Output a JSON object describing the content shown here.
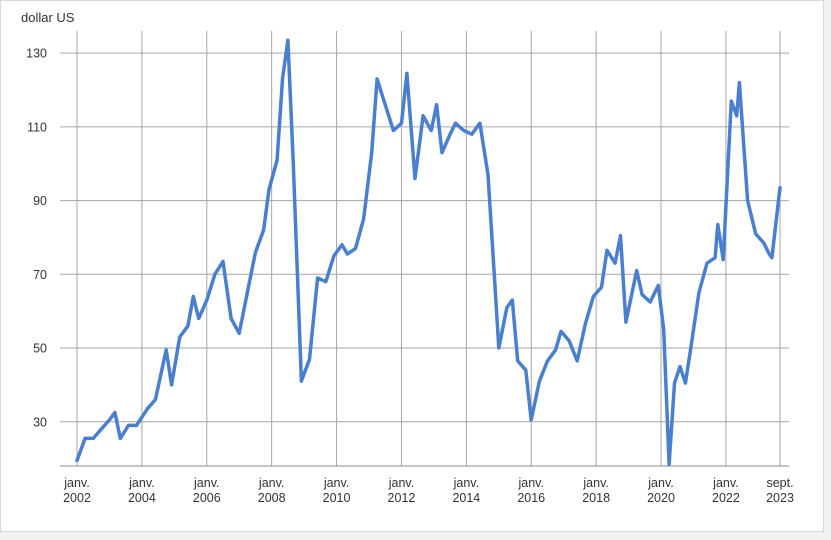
{
  "chart_data": {
    "type": "line",
    "ylabel": "dollar US",
    "xlabel": "",
    "title": "",
    "ylim": [
      18,
      136
    ],
    "xlim": [
      "2002-01",
      "2023-09"
    ],
    "grid": true,
    "legend": "none",
    "y_ticks": [
      30,
      50,
      70,
      90,
      110,
      130
    ],
    "x_ticks": [
      {
        "date": "2002-01",
        "line1": "janv.",
        "line2": "2002"
      },
      {
        "date": "2004-01",
        "line1": "janv.",
        "line2": "2004"
      },
      {
        "date": "2006-01",
        "line1": "janv.",
        "line2": "2006"
      },
      {
        "date": "2008-01",
        "line1": "janv.",
        "line2": "2008"
      },
      {
        "date": "2010-01",
        "line1": "janv.",
        "line2": "2010"
      },
      {
        "date": "2012-01",
        "line1": "janv.",
        "line2": "2012"
      },
      {
        "date": "2014-01",
        "line1": "janv.",
        "line2": "2014"
      },
      {
        "date": "2016-01",
        "line1": "janv.",
        "line2": "2016"
      },
      {
        "date": "2018-01",
        "line1": "janv.",
        "line2": "2018"
      },
      {
        "date": "2020-01",
        "line1": "janv.",
        "line2": "2020"
      },
      {
        "date": "2022-01",
        "line1": "janv.",
        "line2": "2022"
      },
      {
        "date": "2023-09",
        "line1": "sept.",
        "line2": "2023"
      }
    ],
    "series": [
      {
        "color": "#4a7fcf",
        "points": [
          [
            "2002-01",
            19.5
          ],
          [
            "2002-04",
            25.5
          ],
          [
            "2002-07",
            25.5
          ],
          [
            "2002-10",
            28.0
          ],
          [
            "2003-01",
            30.5
          ],
          [
            "2003-03",
            32.5
          ],
          [
            "2003-05",
            25.5
          ],
          [
            "2003-08",
            29.0
          ],
          [
            "2003-11",
            29.0
          ],
          [
            "2004-03",
            33.5
          ],
          [
            "2004-06",
            36.0
          ],
          [
            "2004-10",
            49.5
          ],
          [
            "2004-12",
            40.0
          ],
          [
            "2005-03",
            53.0
          ],
          [
            "2005-06",
            56.0
          ],
          [
            "2005-08",
            64.0
          ],
          [
            "2005-10",
            58.0
          ],
          [
            "2006-01",
            63.0
          ],
          [
            "2006-04",
            70.0
          ],
          [
            "2006-07",
            73.5
          ],
          [
            "2006-10",
            58.0
          ],
          [
            "2007-01",
            54.0
          ],
          [
            "2007-04",
            65.0
          ],
          [
            "2007-07",
            76.0
          ],
          [
            "2007-10",
            82.0
          ],
          [
            "2007-12",
            93.0
          ],
          [
            "2008-03",
            101.0
          ],
          [
            "2008-05",
            123.0
          ],
          [
            "2008-07",
            133.5
          ],
          [
            "2008-09",
            100.0
          ],
          [
            "2008-12",
            41.0
          ],
          [
            "2009-03",
            47.0
          ],
          [
            "2009-06",
            69.0
          ],
          [
            "2009-09",
            68.0
          ],
          [
            "2009-12",
            75.0
          ],
          [
            "2010-03",
            78.0
          ],
          [
            "2010-05",
            75.5
          ],
          [
            "2010-08",
            77.0
          ],
          [
            "2010-11",
            85.0
          ],
          [
            "2011-02",
            103.0
          ],
          [
            "2011-04",
            123.0
          ],
          [
            "2011-07",
            116.0
          ],
          [
            "2011-10",
            109.0
          ],
          [
            "2012-01",
            111.0
          ],
          [
            "2012-03",
            124.5
          ],
          [
            "2012-06",
            96.0
          ],
          [
            "2012-09",
            113.0
          ],
          [
            "2012-12",
            109.0
          ],
          [
            "2013-02",
            116.0
          ],
          [
            "2013-04",
            103.0
          ],
          [
            "2013-07",
            108.0
          ],
          [
            "2013-09",
            111.0
          ],
          [
            "2013-12",
            109.0
          ],
          [
            "2014-03",
            108.0
          ],
          [
            "2014-06",
            111.0
          ],
          [
            "2014-09",
            97.0
          ],
          [
            "2014-12",
            62.0
          ],
          [
            "2015-01",
            50.0
          ],
          [
            "2015-04",
            61.0
          ],
          [
            "2015-06",
            63.0
          ],
          [
            "2015-08",
            46.5
          ],
          [
            "2015-11",
            44.0
          ],
          [
            "2016-01",
            30.5
          ],
          [
            "2016-04",
            41.0
          ],
          [
            "2016-07",
            46.5
          ],
          [
            "2016-10",
            49.5
          ],
          [
            "2016-12",
            54.5
          ],
          [
            "2017-03",
            52.0
          ],
          [
            "2017-06",
            46.5
          ],
          [
            "2017-09",
            56.5
          ],
          [
            "2017-12",
            64.0
          ],
          [
            "2018-03",
            66.5
          ],
          [
            "2018-05",
            76.5
          ],
          [
            "2018-08",
            73.0
          ],
          [
            "2018-10",
            80.5
          ],
          [
            "2018-12",
            57.0
          ],
          [
            "2019-04",
            71.0
          ],
          [
            "2019-06",
            64.5
          ],
          [
            "2019-09",
            62.5
          ],
          [
            "2019-12",
            67.0
          ],
          [
            "2020-02",
            55.0
          ],
          [
            "2020-04",
            18.5
          ],
          [
            "2020-06",
            40.5
          ],
          [
            "2020-08",
            45.0
          ],
          [
            "2020-10",
            40.5
          ],
          [
            "2020-12",
            50.0
          ],
          [
            "2021-03",
            65.0
          ],
          [
            "2021-06",
            73.0
          ],
          [
            "2021-09",
            74.5
          ],
          [
            "2021-10",
            83.5
          ],
          [
            "2021-12",
            74.0
          ],
          [
            "2022-03",
            117.0
          ],
          [
            "2022-05",
            113.0
          ],
          [
            "2022-06",
            122.0
          ],
          [
            "2022-09",
            90.0
          ],
          [
            "2022-12",
            81.0
          ],
          [
            "2023-03",
            78.5
          ],
          [
            "2023-05",
            75.5
          ],
          [
            "2023-06",
            74.5
          ],
          [
            "2023-09",
            93.5
          ]
        ]
      }
    ]
  }
}
